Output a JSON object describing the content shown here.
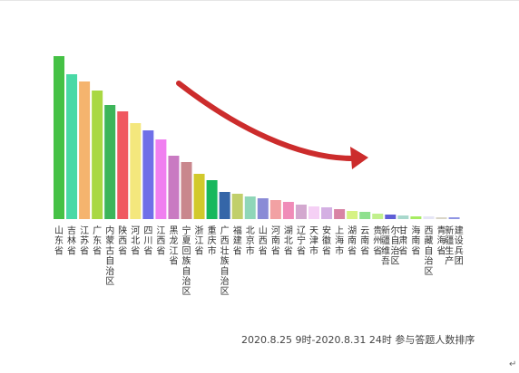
{
  "chart_data": {
    "type": "bar",
    "categories": [
      "山东省",
      "吉林省",
      "江苏省",
      "广东省",
      "内蒙古自治区",
      "陕西省",
      "河北省",
      "四川省",
      "江西省",
      "黑龙江省",
      "宁夏回族自治区",
      "浙江省",
      "重庆市",
      "广西壮族自治区",
      "福建省",
      "北京市",
      "山西省",
      "河南省",
      "湖北省",
      "辽宁省",
      "天津市",
      "安徽省",
      "上海市",
      "湖南省",
      "云南省",
      "贵州省",
      "新疆维吾尔自治区",
      "甘肃省",
      "海南省",
      "西藏自治区",
      "青海省",
      "新疆生产建设兵团"
    ],
    "values": [
      180,
      160,
      152,
      142,
      126,
      119,
      106,
      98,
      88,
      70,
      63,
      50,
      43,
      30,
      28,
      25,
      23,
      21,
      19,
      16,
      14,
      13,
      11,
      9,
      8,
      6,
      5,
      4,
      3,
      3,
      2,
      2
    ],
    "ylim": [
      0,
      180
    ],
    "title": "",
    "xlabel": "",
    "ylabel": "",
    "grid": false,
    "legend": "none",
    "colors": [
      "#45c145",
      "#49d9a6",
      "#f5b46e",
      "#a9d843",
      "#3db55a",
      "#f05860",
      "#f4e77d",
      "#6f6fe8",
      "#f07ff0",
      "#c97ac2",
      "#c9878d",
      "#d2c92c",
      "#17b85d",
      "#3566a8",
      "#c1cf6b",
      "#8fd6b8",
      "#8a8bd6",
      "#f2a1a3",
      "#f08cb8",
      "#d3a8cf",
      "#f5d0f5",
      "#d4b0e3",
      "#d883a4",
      "#d6f284",
      "#8fe08f",
      "#c1f08c",
      "#5e5ed6",
      "#a8d8cc",
      "#a6ec61",
      "#e5e5f5",
      "#d9d5c7",
      "#8f95e3"
    ]
  },
  "annotation": {
    "arrow_color": "#cc2c2c"
  },
  "caption": "2020.8.25 9时-2020.8.31 24时 参与答题人数排序",
  "return_mark": "↵"
}
